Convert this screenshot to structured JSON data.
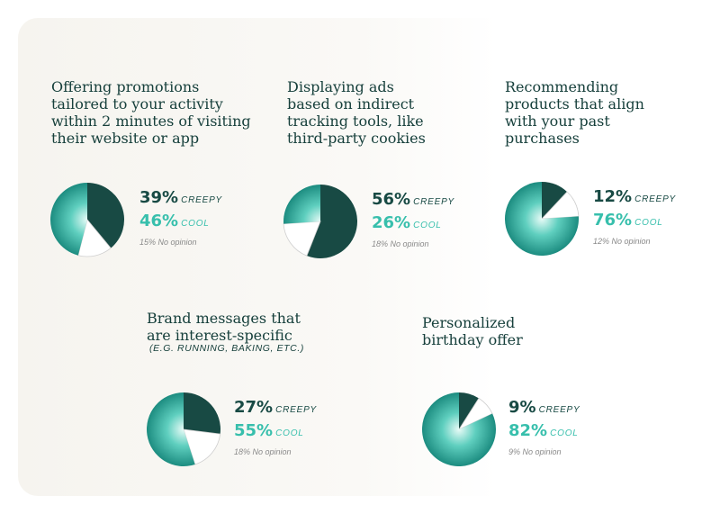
{
  "colors": {
    "creepy": "#184a44",
    "cool_center": "#e9fbf7",
    "cool_mid": "#5fcfbf",
    "cool_edge": "#1c8c80",
    "none": "#ffffff",
    "none_stroke": "#cfcfcf"
  },
  "chart_data": [
    {
      "type": "pie",
      "title": "Offering promotions\ntailored to your activity\nwithin 2 minutes of visiting\ntheir website or app",
      "subtitle": "",
      "series": [
        {
          "name": "CREEPY",
          "value": 39,
          "value_label": "39%"
        },
        {
          "name": "COOL",
          "value": 46,
          "value_label": "46%"
        },
        {
          "name": "No opinion",
          "value": 15,
          "value_label": "15%"
        }
      ]
    },
    {
      "type": "pie",
      "title": "Displaying ads\nbased on indirect\ntracking tools, like\nthird-party cookies",
      "subtitle": "",
      "series": [
        {
          "name": "CREEPY",
          "value": 56,
          "value_label": "56%"
        },
        {
          "name": "COOL",
          "value": 26,
          "value_label": "26%"
        },
        {
          "name": "No opinion",
          "value": 18,
          "value_label": "18%"
        }
      ]
    },
    {
      "type": "pie",
      "title": "Recommending\nproducts that align\nwith your past\npurchases",
      "subtitle": "",
      "series": [
        {
          "name": "CREEPY",
          "value": 12,
          "value_label": "12%"
        },
        {
          "name": "COOL",
          "value": 76,
          "value_label": "76%"
        },
        {
          "name": "No opinion",
          "value": 12,
          "value_label": "12%"
        }
      ]
    },
    {
      "type": "pie",
      "title": "Brand messages that\nare interest-specific",
      "subtitle": "(E.G. RUNNING, BAKING, ETC.)",
      "series": [
        {
          "name": "CREEPY",
          "value": 27,
          "value_label": "27%"
        },
        {
          "name": "COOL",
          "value": 55,
          "value_label": "55%"
        },
        {
          "name": "No opinion",
          "value": 18,
          "value_label": "18%"
        }
      ]
    },
    {
      "type": "pie",
      "title": "Personalized\nbirthday offer",
      "subtitle": "",
      "series": [
        {
          "name": "CREEPY",
          "value": 9,
          "value_label": "9%"
        },
        {
          "name": "COOL",
          "value": 82,
          "value_label": "82%"
        },
        {
          "name": "No opinion",
          "value": 9,
          "value_label": "9%"
        }
      ]
    }
  ]
}
